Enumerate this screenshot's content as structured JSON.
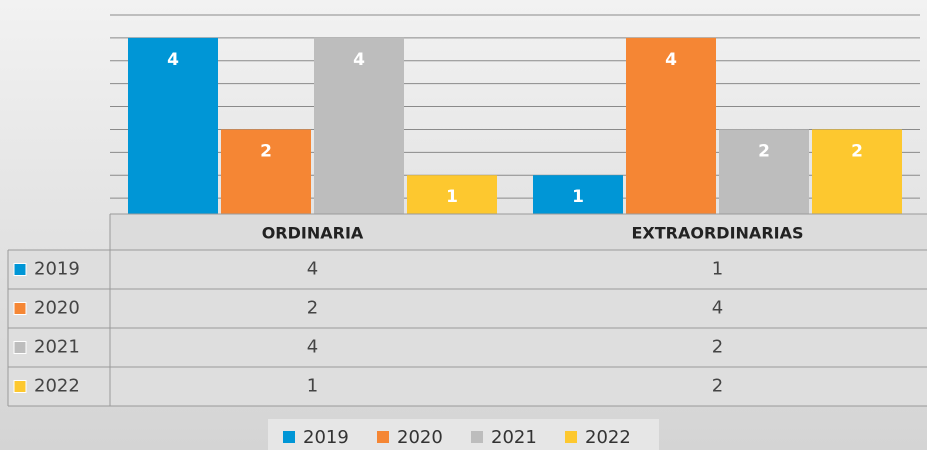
{
  "chart_data": {
    "type": "bar",
    "categories": [
      "ORDINARIA",
      "EXTRAORDINARIAS"
    ],
    "series": [
      {
        "name": "2019",
        "color": "#0096d6",
        "values": [
          4,
          1
        ]
      },
      {
        "name": "2020",
        "color": "#f58634",
        "values": [
          2,
          4
        ]
      },
      {
        "name": "2021",
        "color": "#bdbdbd",
        "values": [
          4,
          2
        ]
      },
      {
        "name": "2022",
        "color": "#fdc82f",
        "values": [
          1,
          2
        ]
      }
    ],
    "ylim": [
      0,
      4.5
    ],
    "yticks": [
      0,
      0.5,
      1,
      1.5,
      2,
      2.5,
      3,
      3.5,
      4,
      4.5
    ],
    "grid": true,
    "legend": "bottom",
    "data_table": true
  }
}
